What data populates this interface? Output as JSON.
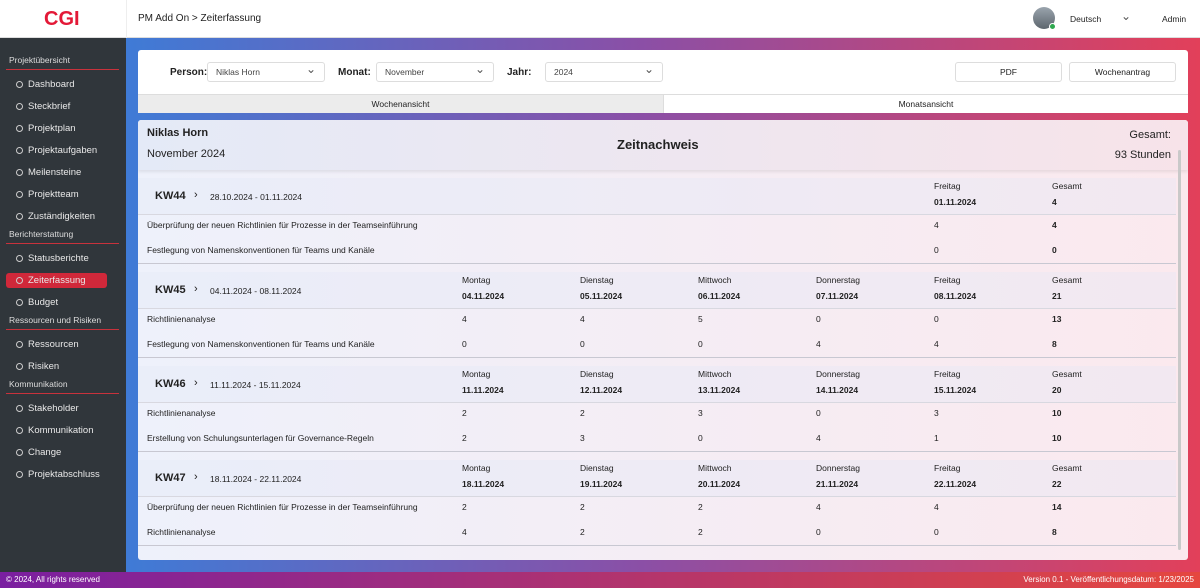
{
  "header": {
    "logo": "CGI",
    "breadcrumb": "PM Add On > Zeiterfassung",
    "language": "Deutsch",
    "user": "Admin"
  },
  "sidebar": [
    {
      "title": "Projektübersicht",
      "items": [
        "Dashboard",
        "Steckbrief",
        "Projektplan",
        "Projektaufgaben",
        "Meilensteine",
        "Projektteam",
        "Zuständigkeiten"
      ]
    },
    {
      "title": "Berichterstattung",
      "items": [
        "Statusberichte",
        "Zeiterfassung",
        "Budget"
      ]
    },
    {
      "title": "Ressourcen und Risiken",
      "items": [
        "Ressourcen",
        "Risiken"
      ]
    },
    {
      "title": "Kommunikation",
      "items": [
        "Stakeholder",
        "Kommunikation",
        "Change",
        "Projektabschluss"
      ]
    }
  ],
  "active_item": "Zeiterfassung",
  "filters": {
    "person_label": "Person:",
    "person": "Niklas Horn",
    "month_label": "Monat:",
    "month": "November",
    "year_label": "Jahr:",
    "year": "2024",
    "pdf_button": "PDF",
    "request_button": "Wochenantrag",
    "tab_week": "Wochenansicht",
    "tab_month": "Monatsansicht"
  },
  "summary": {
    "name": "Niklas Horn",
    "period": "November 2024",
    "title": "Zeitnachweis",
    "total_label": "Gesamt:",
    "total": "93 Stunden"
  },
  "weeks": [
    {
      "kw": "KW44",
      "range": "28.10.2024 - 01.11.2024",
      "days": [
        {
          "name": "Freitag",
          "date": "01.11.2024"
        }
      ],
      "total_label": "Gesamt",
      "total": 4,
      "rows": [
        {
          "task": "Überprüfung der neuen Richtlinien für Prozesse in der Teamseinführung",
          "values": [
            4
          ],
          "total": 4
        },
        {
          "task": "Festlegung von Namenskonventionen für Teams und Kanäle",
          "values": [
            0
          ],
          "total": 0
        }
      ]
    },
    {
      "kw": "KW45",
      "range": "04.11.2024 - 08.11.2024",
      "days": [
        {
          "name": "Montag",
          "date": "04.11.2024"
        },
        {
          "name": "Dienstag",
          "date": "05.11.2024"
        },
        {
          "name": "Mittwoch",
          "date": "06.11.2024"
        },
        {
          "name": "Donnerstag",
          "date": "07.11.2024"
        },
        {
          "name": "Freitag",
          "date": "08.11.2024"
        }
      ],
      "total_label": "Gesamt",
      "total": 21,
      "rows": [
        {
          "task": "Richtlinienanalyse",
          "values": [
            4,
            4,
            5,
            0,
            0
          ],
          "total": 13
        },
        {
          "task": "Festlegung von Namenskonventionen für Teams und Kanäle",
          "values": [
            0,
            0,
            0,
            4,
            4
          ],
          "total": 8
        }
      ]
    },
    {
      "kw": "KW46",
      "range": "11.11.2024 - 15.11.2024",
      "days": [
        {
          "name": "Montag",
          "date": "11.11.2024"
        },
        {
          "name": "Dienstag",
          "date": "12.11.2024"
        },
        {
          "name": "Mittwoch",
          "date": "13.11.2024"
        },
        {
          "name": "Donnerstag",
          "date": "14.11.2024"
        },
        {
          "name": "Freitag",
          "date": "15.11.2024"
        }
      ],
      "total_label": "Gesamt",
      "total": 20,
      "rows": [
        {
          "task": "Richtlinienanalyse",
          "values": [
            2,
            2,
            3,
            0,
            3
          ],
          "total": 10
        },
        {
          "task": "Erstellung von Schulungsunterlagen für Governance-Regeln",
          "values": [
            2,
            3,
            0,
            4,
            1
          ],
          "total": 10
        }
      ]
    },
    {
      "kw": "KW47",
      "range": "18.11.2024 - 22.11.2024",
      "days": [
        {
          "name": "Montag",
          "date": "18.11.2024"
        },
        {
          "name": "Dienstag",
          "date": "19.11.2024"
        },
        {
          "name": "Mittwoch",
          "date": "20.11.2024"
        },
        {
          "name": "Donnerstag",
          "date": "21.11.2024"
        },
        {
          "name": "Freitag",
          "date": "22.11.2024"
        }
      ],
      "total_label": "Gesamt",
      "total": 22,
      "rows": [
        {
          "task": "Überprüfung der neuen Richtlinien für Prozesse in der Teamseinführung",
          "values": [
            2,
            2,
            2,
            4,
            4
          ],
          "total": 14
        },
        {
          "task": "Richtlinienanalyse",
          "values": [
            4,
            2,
            2,
            0,
            0
          ],
          "total": 8
        }
      ]
    }
  ],
  "footer": {
    "copyright": "© 2024, All rights reserved",
    "version": "Version 0.1 - Veröffentlichungsdatum: 1/23/2025"
  }
}
